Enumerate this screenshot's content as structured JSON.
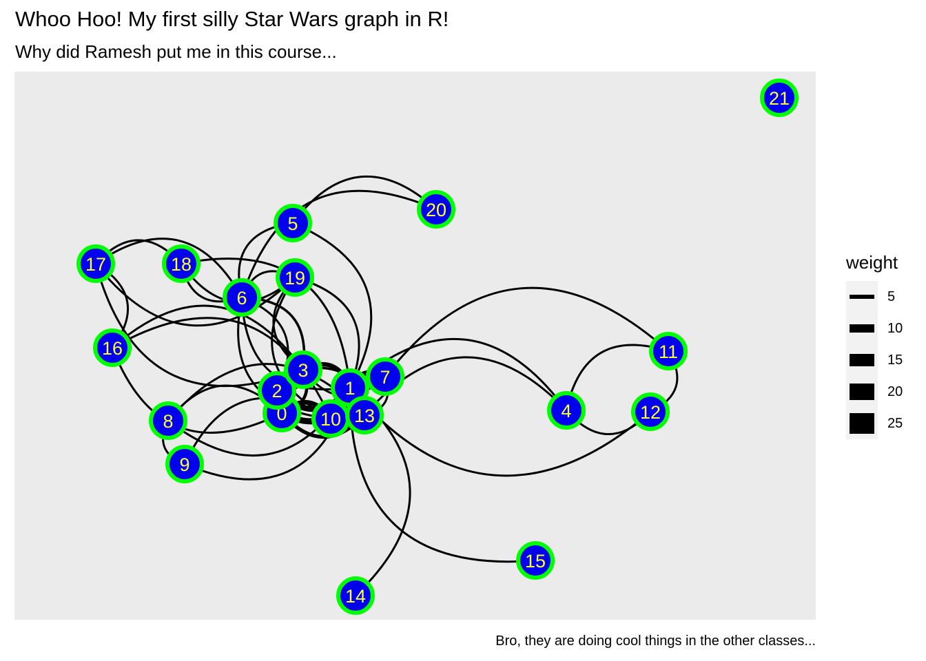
{
  "title": "Whoo Hoo! My first silly Star Wars graph in R!",
  "subtitle": "Why did Ramesh put me in this course...",
  "caption": "Bro, they are doing cool things in the other classes...",
  "colors": {
    "panel": "#ebebeb",
    "node_fill": "#0000ee",
    "node_border": "#00ff00",
    "node_label": "#ffff33",
    "edge": "#000000"
  },
  "legend": {
    "title": "weight",
    "entries": [
      {
        "label": "5",
        "value": 5
      },
      {
        "label": "10",
        "value": 10
      },
      {
        "label": "15",
        "value": 15
      },
      {
        "label": "20",
        "value": 20
      },
      {
        "label": "25",
        "value": 25
      }
    ]
  },
  "nodes": [
    "0",
    "1",
    "2",
    "3",
    "4",
    "5",
    "6",
    "7",
    "8",
    "9",
    "10",
    "11",
    "12",
    "13",
    "14",
    "15",
    "16",
    "17",
    "18",
    "19",
    "20",
    "21"
  ],
  "edges": [
    {
      "from": "0",
      "to": "1",
      "weight": 20
    },
    {
      "from": "0",
      "to": "2",
      "weight": 15
    },
    {
      "from": "0",
      "to": "3",
      "weight": 10
    },
    {
      "from": "0",
      "to": "10",
      "weight": 15
    },
    {
      "from": "0",
      "to": "13",
      "weight": 12
    },
    {
      "from": "1",
      "to": "2",
      "weight": 18
    },
    {
      "from": "1",
      "to": "3",
      "weight": 14
    },
    {
      "from": "1",
      "to": "10",
      "weight": 22
    },
    {
      "from": "1",
      "to": "13",
      "weight": 20
    },
    {
      "from": "1",
      "to": "7",
      "weight": 10
    },
    {
      "from": "2",
      "to": "3",
      "weight": 12
    },
    {
      "from": "3",
      "to": "13",
      "weight": 8
    },
    {
      "from": "10",
      "to": "13",
      "weight": 15
    },
    {
      "from": "7",
      "to": "13",
      "weight": 6
    },
    {
      "from": "3",
      "to": "7",
      "weight": 5
    },
    {
      "from": "6",
      "to": "3",
      "weight": 8
    },
    {
      "from": "6",
      "to": "1",
      "weight": 6
    },
    {
      "from": "6",
      "to": "2",
      "weight": 4
    },
    {
      "from": "6",
      "to": "10",
      "weight": 5
    },
    {
      "from": "6",
      "to": "19",
      "weight": 5
    },
    {
      "from": "19",
      "to": "3",
      "weight": 4
    },
    {
      "from": "19",
      "to": "1",
      "weight": 3
    },
    {
      "from": "19",
      "to": "10",
      "weight": 2
    },
    {
      "from": "5",
      "to": "20",
      "weight": 2
    },
    {
      "from": "5",
      "to": "6",
      "weight": 2
    },
    {
      "from": "5",
      "to": "1",
      "weight": 2
    },
    {
      "from": "20",
      "to": "6",
      "weight": 2
    },
    {
      "from": "17",
      "to": "18",
      "weight": 2
    },
    {
      "from": "17",
      "to": "19",
      "weight": 2
    },
    {
      "from": "17",
      "to": "16",
      "weight": 2
    },
    {
      "from": "17",
      "to": "3",
      "weight": 2
    },
    {
      "from": "17",
      "to": "6",
      "weight": 2
    },
    {
      "from": "18",
      "to": "6",
      "weight": 3
    },
    {
      "from": "18",
      "to": "1",
      "weight": 2
    },
    {
      "from": "18",
      "to": "19",
      "weight": 2
    },
    {
      "from": "16",
      "to": "3",
      "weight": 2
    },
    {
      "from": "16",
      "to": "0",
      "weight": 2
    },
    {
      "from": "16",
      "to": "10",
      "weight": 2
    },
    {
      "from": "8",
      "to": "1",
      "weight": 4
    },
    {
      "from": "8",
      "to": "0",
      "weight": 3
    },
    {
      "from": "8",
      "to": "9",
      "weight": 2
    },
    {
      "from": "8",
      "to": "13",
      "weight": 3
    },
    {
      "from": "9",
      "to": "1",
      "weight": 2
    },
    {
      "from": "9",
      "to": "10",
      "weight": 3
    },
    {
      "from": "14",
      "to": "1",
      "weight": 2
    },
    {
      "from": "15",
      "to": "1",
      "weight": 2
    },
    {
      "from": "4",
      "to": "12",
      "weight": 5
    },
    {
      "from": "4",
      "to": "11",
      "weight": 2
    },
    {
      "from": "4",
      "to": "1",
      "weight": 2
    },
    {
      "from": "11",
      "to": "12",
      "weight": 2
    },
    {
      "from": "11",
      "to": "7",
      "weight": 2
    },
    {
      "from": "12",
      "to": "1",
      "weight": 2
    },
    {
      "from": "4",
      "to": "13",
      "weight": 2
    }
  ]
}
